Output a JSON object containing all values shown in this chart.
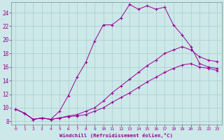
{
  "xlabel": "Windchill (Refroidissement éolien,°C)",
  "background_color": "#cce8e8",
  "line_color": "#990099",
  "grid_color": "#aacccc",
  "xlim": [
    -0.5,
    23.5
  ],
  "ylim": [
    7.5,
    25.5
  ],
  "xticks": [
    0,
    1,
    2,
    3,
    4,
    5,
    6,
    7,
    8,
    9,
    10,
    11,
    12,
    13,
    14,
    15,
    16,
    17,
    18,
    19,
    20,
    21,
    22,
    23
  ],
  "yticks": [
    8,
    10,
    12,
    14,
    16,
    18,
    20,
    22,
    24
  ],
  "line1_x": [
    0,
    1,
    2,
    3,
    4,
    5,
    6,
    7,
    8,
    9,
    10,
    11,
    12,
    13,
    14,
    15,
    16,
    17,
    18,
    19,
    20,
    21,
    22,
    23
  ],
  "line1_y": [
    9.8,
    9.2,
    8.3,
    8.5,
    8.3,
    9.5,
    11.8,
    14.5,
    16.7,
    19.8,
    22.2,
    22.2,
    23.2,
    25.2,
    24.5,
    25.0,
    24.5,
    24.8,
    22.2,
    20.7,
    19.0,
    16.5,
    16.0,
    15.8
  ],
  "line2_x": [
    0,
    1,
    2,
    3,
    4,
    5,
    6,
    7,
    8,
    9,
    10,
    11,
    12,
    13,
    14,
    15,
    16,
    17,
    18,
    19,
    20,
    21,
    22,
    23
  ],
  "line2_y": [
    9.8,
    9.2,
    8.3,
    8.5,
    8.3,
    8.5,
    8.8,
    9.0,
    9.5,
    10.0,
    11.0,
    12.2,
    13.2,
    14.2,
    15.2,
    16.2,
    17.0,
    18.0,
    18.5,
    19.0,
    18.5,
    17.5,
    17.0,
    16.8
  ],
  "line3_x": [
    0,
    1,
    2,
    3,
    4,
    5,
    6,
    7,
    8,
    9,
    10,
    11,
    12,
    13,
    14,
    15,
    16,
    17,
    18,
    19,
    20,
    21,
    22,
    23
  ],
  "line3_y": [
    9.8,
    9.2,
    8.3,
    8.5,
    8.3,
    8.5,
    8.7,
    8.8,
    9.0,
    9.5,
    10.0,
    10.8,
    11.5,
    12.2,
    13.0,
    13.8,
    14.5,
    15.2,
    15.8,
    16.3,
    16.5,
    16.0,
    15.8,
    15.5
  ]
}
